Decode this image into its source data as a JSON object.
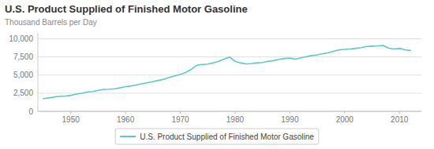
{
  "chart_data": {
    "type": "line",
    "title": "U.S. Product Supplied of Finished Motor Gasoline",
    "ylabel": "Thousand Barrels per Day",
    "x": [
      1945,
      1946,
      1947,
      1948,
      1949,
      1950,
      1951,
      1952,
      1953,
      1954,
      1955,
      1956,
      1957,
      1958,
      1959,
      1960,
      1961,
      1962,
      1963,
      1964,
      1965,
      1966,
      1967,
      1968,
      1969,
      1970,
      1971,
      1972,
      1973,
      1974,
      1975,
      1976,
      1977,
      1978,
      1979,
      1980,
      1981,
      1982,
      1983,
      1984,
      1985,
      1986,
      1987,
      1988,
      1989,
      1990,
      1991,
      1992,
      1993,
      1994,
      1995,
      1996,
      1997,
      1998,
      1999,
      2000,
      2001,
      2002,
      2003,
      2004,
      2005,
      2006,
      2007,
      2008,
      2009,
      2010,
      2011,
      2012
    ],
    "series": [
      {
        "name": "U.S. Product Supplied of Finished Motor Gasoline",
        "color": "#5bc8cf",
        "values": [
          1750,
          1850,
          1980,
          2050,
          2100,
          2200,
          2380,
          2480,
          2680,
          2720,
          2880,
          3020,
          3050,
          3100,
          3250,
          3400,
          3500,
          3650,
          3800,
          3950,
          4100,
          4250,
          4420,
          4680,
          4880,
          5080,
          5380,
          5780,
          6350,
          6450,
          6500,
          6680,
          6880,
          7200,
          7480,
          6880,
          6680,
          6530,
          6580,
          6680,
          6720,
          6880,
          6980,
          7150,
          7280,
          7330,
          7180,
          7380,
          7530,
          7680,
          7780,
          7930,
          8080,
          8280,
          8480,
          8530,
          8580,
          8680,
          8780,
          8930,
          8980,
          9020,
          9080,
          8730,
          8580,
          8680,
          8480,
          8380
        ]
      }
    ],
    "xlim": [
      1944,
      2014
    ],
    "xticks": [
      1950,
      1960,
      1970,
      1980,
      1990,
      2000,
      2010
    ],
    "ylim": [
      0,
      10800
    ],
    "yticks": [
      0,
      {
        "value": 2500,
        "label": "2,500"
      },
      {
        "value": 5000,
        "label": "5,000"
      },
      {
        "value": 7500,
        "label": "7,500"
      },
      {
        "value": 10000,
        "label": "10,000"
      }
    ],
    "grid": true,
    "legend": "bottom"
  }
}
